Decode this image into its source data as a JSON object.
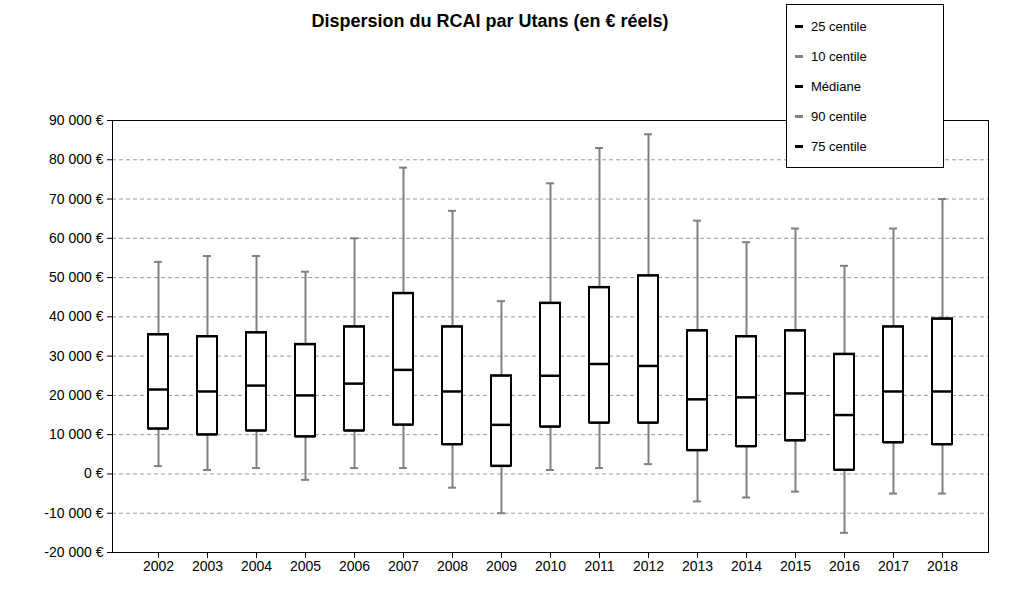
{
  "chart_data": {
    "type": "box",
    "title": "Dispersion du RCAI par Utans (en € réels)",
    "categories": [
      "2002",
      "2003",
      "2004",
      "2005",
      "2006",
      "2007",
      "2008",
      "2009",
      "2010",
      "2011",
      "2012",
      "2013",
      "2014",
      "2015",
      "2016",
      "2017",
      "2018"
    ],
    "series": [
      {
        "name": "25 centile",
        "color": "#000000",
        "values": [
          11500,
          10000,
          11000,
          9500,
          11000,
          12500,
          7500,
          2000,
          12000,
          13000,
          13000,
          6000,
          7000,
          8500,
          1000,
          8000,
          7500
        ]
      },
      {
        "name": "10 centile",
        "color": "#808080",
        "values": [
          2000,
          1000,
          1500,
          -1500,
          1500,
          1500,
          -3500,
          -10000,
          1000,
          1500,
          2500,
          -7000,
          -6000,
          -4500,
          -15000,
          -5000,
          -5000
        ]
      },
      {
        "name": "Médiane",
        "color": "#000000",
        "values": [
          21500,
          21000,
          22500,
          20000,
          23000,
          26500,
          21000,
          12500,
          25000,
          28000,
          27500,
          19000,
          19500,
          20500,
          15000,
          21000,
          21000
        ]
      },
      {
        "name": "90 centile",
        "color": "#808080",
        "values": [
          54000,
          55500,
          55500,
          51500,
          60000,
          78000,
          67000,
          44000,
          74000,
          83000,
          86500,
          64500,
          59000,
          62500,
          53000,
          62500,
          70000
        ]
      },
      {
        "name": "75 centile",
        "color": "#000000",
        "values": [
          35500,
          35000,
          36000,
          33000,
          37500,
          46000,
          37500,
          25000,
          43500,
          47500,
          50500,
          36500,
          35000,
          36500,
          30500,
          37500,
          39500
        ]
      }
    ],
    "ylim": [
      -20000,
      90000
    ],
    "yticks": [
      {
        "value": -20000,
        "label": "-20 000 €"
      },
      {
        "value": -10000,
        "label": "-10 000 €"
      },
      {
        "value": 0,
        "label": "0 €"
      },
      {
        "value": 10000,
        "label": "10 000 €"
      },
      {
        "value": 20000,
        "label": "20 000 €"
      },
      {
        "value": 30000,
        "label": "30 000 €"
      },
      {
        "value": 40000,
        "label": "40 000 €"
      },
      {
        "value": 50000,
        "label": "50 000 €"
      },
      {
        "value": 60000,
        "label": "60 000 €"
      },
      {
        "value": 70000,
        "label": "70 000 €"
      },
      {
        "value": 80000,
        "label": "80 000 €"
      },
      {
        "value": 90000,
        "label": "90 000 €"
      }
    ],
    "grid": true,
    "legend": "top-right"
  }
}
